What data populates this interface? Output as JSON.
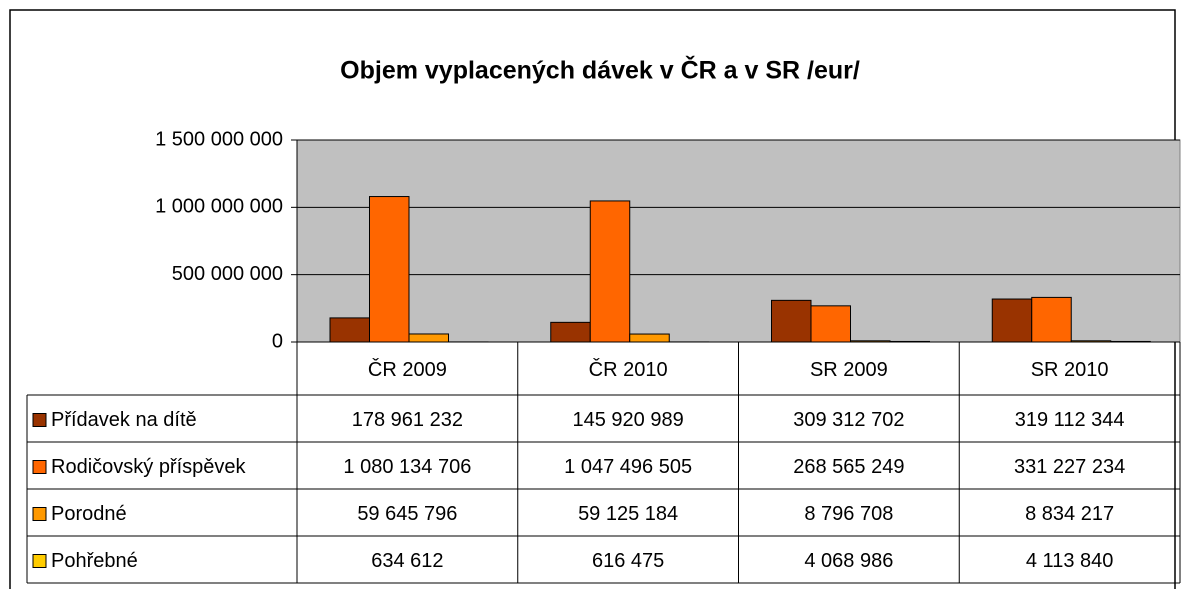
{
  "chart_data": {
    "type": "bar",
    "title": "Objem vyplacených dávek v ČR a v SR /eur/",
    "categories": [
      "ČR 2009",
      "ČR 2010",
      "SR 2009",
      "SR 2010"
    ],
    "series": [
      {
        "name": "Přídavek na dítě",
        "color": "#993300",
        "values": [
          178961232,
          145920989,
          309312702,
          319112344
        ],
        "value_labels": [
          "178 961 232",
          "145 920 989",
          "309 312 702",
          "319 112 344"
        ]
      },
      {
        "name": "Rodičovský příspěvek",
        "color": "#ff6600",
        "values": [
          1080134706,
          1047496505,
          268565249,
          331227234
        ],
        "value_labels": [
          "1 080 134 706",
          "1 047 496 505",
          "268 565 249",
          "331 227 234"
        ]
      },
      {
        "name": "Porodné",
        "color": "#ff9900",
        "values": [
          59645796,
          59125184,
          8796708,
          8834217
        ],
        "value_labels": [
          "59 645 796",
          "59 125 184",
          "8 796 708",
          "8 834 217"
        ]
      },
      {
        "name": "Pohřebné",
        "color": "#ffcc00",
        "values": [
          634612,
          616475,
          4068986,
          4113840
        ],
        "value_labels": [
          "634 612",
          "616 475",
          "4 068 986",
          "4 113 840"
        ]
      }
    ],
    "ylim": [
      0,
      1500000000
    ],
    "yticks": [
      0,
      {
        "value": 500000000,
        "label": "500 000 000"
      },
      {
        "value": 1000000000,
        "label": "1 000 000 000"
      },
      {
        "value": 1500000000,
        "label": "1 500 000 000"
      }
    ],
    "grid": true
  }
}
